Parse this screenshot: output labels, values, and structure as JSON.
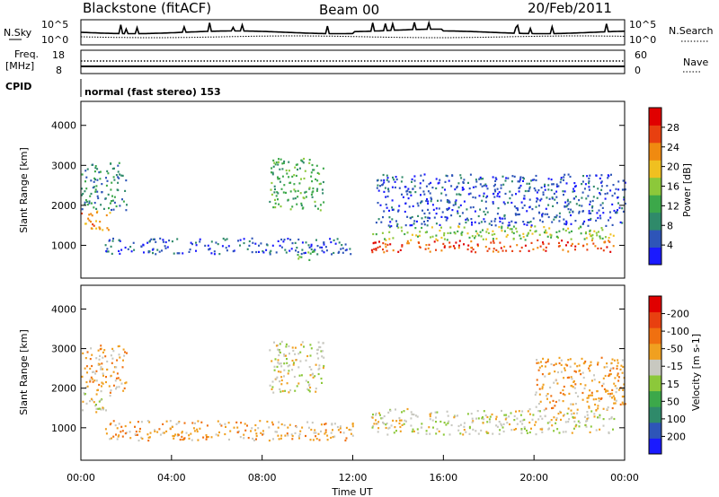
{
  "header": {
    "station": "Blackstone (fitACF)",
    "beam": "Beam 00",
    "date": "20/Feb/2011"
  },
  "params_panel": {
    "nsky_label": "N.Sky",
    "nsky_ticks": [
      "10^5",
      "10^0"
    ],
    "nsky_right_ticks": [
      "10^5",
      "10^0"
    ],
    "nsearch_label": "N.Search",
    "freq_label": "Freq.",
    "freq_unit": "[MHz]",
    "freq_ticks": [
      "18",
      "8"
    ],
    "nave_ticks": [
      "60",
      "0"
    ],
    "nave_label": "Nave",
    "cpid_label": "CPID",
    "cpid_text": "normal (fast stereo) 153"
  },
  "chart_data": [
    {
      "type": "heatmap",
      "name": "power",
      "ylabel": "Slant Range [km]",
      "yticks": [
        "1000",
        "2000",
        "3000",
        "4000"
      ],
      "ylim": [
        180,
        4600
      ],
      "xlim": [
        0,
        24
      ],
      "colorbar": {
        "label": "Power [dB]",
        "ticks": [
          "4",
          "8",
          "12",
          "16",
          "20",
          "24",
          "28"
        ],
        "colors": [
          "#1a1aff",
          "#2e55b8",
          "#2f8a6a",
          "#3ca84a",
          "#8cc83a",
          "#f0c020",
          "#f08a10",
          "#e84010",
          "#e00000"
        ]
      },
      "bands": [
        {
          "t0": 0.0,
          "t1": 1.3,
          "r0": 1400,
          "r1": 1900,
          "level": 6
        },
        {
          "t0": 0.0,
          "t1": 2.0,
          "r0": 1900,
          "r1": 3100,
          "level": 2
        },
        {
          "t0": 1.0,
          "t1": 12.0,
          "r0": 800,
          "r1": 1200,
          "level": 1
        },
        {
          "t0": 8.3,
          "t1": 10.7,
          "r0": 1900,
          "r1": 3200,
          "level": 3
        },
        {
          "t0": 9.5,
          "t1": 10.3,
          "r0": 600,
          "r1": 900,
          "level": 3
        },
        {
          "t0": 12.8,
          "t1": 23.5,
          "r0": 850,
          "r1": 1150,
          "level": 7
        },
        {
          "t0": 12.8,
          "t1": 23.5,
          "r0": 1150,
          "r1": 1500,
          "level": 4
        },
        {
          "t0": 13.0,
          "t1": 24.0,
          "r0": 1500,
          "r1": 2800,
          "level": 1
        }
      ]
    },
    {
      "type": "heatmap",
      "name": "velocity",
      "xlabel": "Time UT",
      "ylabel": "Slant Range [km]",
      "yticks": [
        "1000",
        "2000",
        "3000",
        "4000"
      ],
      "ylim": [
        180,
        4600
      ],
      "xlim": [
        0,
        24
      ],
      "xticks": [
        "00:00",
        "04:00",
        "08:00",
        "12:00",
        "16:00",
        "20:00",
        "00:00"
      ],
      "colorbar": {
        "label": "Velocity [m s-1]",
        "ticks": [
          "200",
          "100",
          "50",
          "15",
          "-15",
          "-50",
          "-100",
          "-200"
        ],
        "colors": [
          "#1a1aff",
          "#2e55b8",
          "#2f8a6a",
          "#3ca84a",
          "#8cc83a",
          "#c8c8c0",
          "#f0a020",
          "#f07010",
          "#e84010",
          "#e00000"
        ]
      },
      "bands": [
        {
          "t0": 0.0,
          "t1": 1.3,
          "r0": 1400,
          "r1": 1900,
          "level": 5
        },
        {
          "t0": 0.0,
          "t1": 2.0,
          "r0": 1900,
          "r1": 3100,
          "level": 6
        },
        {
          "t0": 1.0,
          "t1": 12.0,
          "r0": 700,
          "r1": 1200,
          "level": 6
        },
        {
          "t0": 8.3,
          "t1": 10.7,
          "r0": 1900,
          "r1": 3200,
          "level": 5
        },
        {
          "t0": 12.8,
          "t1": 23.5,
          "r0": 850,
          "r1": 1500,
          "level": 5
        },
        {
          "t0": 20.0,
          "t1": 24.0,
          "r0": 1500,
          "r1": 2800,
          "level": 6
        }
      ]
    }
  ]
}
